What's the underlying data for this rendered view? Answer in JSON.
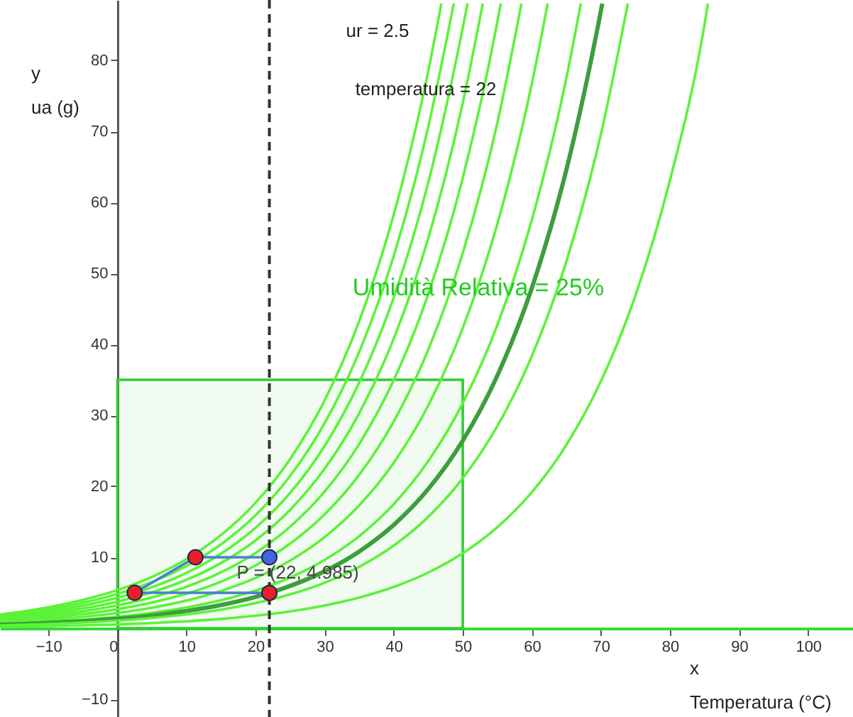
{
  "chart_data": {
    "type": "line",
    "xlabel": "x\nTemperatura (°C)",
    "ylabel": "y\nua (g)",
    "xlim": [
      -17,
      106.5
    ],
    "ylim": [
      -12.5,
      88.5
    ],
    "xticks": [
      -10,
      0,
      10,
      20,
      30,
      40,
      50,
      60,
      70,
      80,
      90,
      100
    ],
    "yticks": [
      -10,
      10,
      20,
      30,
      40,
      50,
      60,
      70,
      80
    ],
    "grid": false,
    "ref_lines": [
      {
        "axis": "x",
        "value": 22,
        "line_style": "dashed",
        "color": "#333333"
      }
    ],
    "annotations": [
      "ur = 2.5",
      "temperatura = 22",
      "Umidità Relativa = 25%",
      {
        "text": "P = (22, 4.985)",
        "x": 22,
        "y": 4.985
      }
    ],
    "series": [
      {
        "type": "area",
        "x": [
          0,
          50
        ],
        "values": [
          35,
          35
        ],
        "color": "#33cc33"
      },
      {
        "color": "#5cf23a",
        "x": [
          -17,
          -15,
          -10,
          -5,
          0,
          5,
          10,
          15,
          20,
          25,
          30,
          35,
          40,
          45,
          46.9
        ],
        "values": [
          1.95,
          2.2,
          2.96,
          3.99,
          5.37,
          7.24,
          9.75,
          13.13,
          17.69,
          23.83,
          32.1,
          43.24,
          58.24,
          78.45,
          88
        ]
      },
      {
        "color": "#5cf23a",
        "x": [
          -17,
          -15,
          -10,
          -5,
          0,
          5,
          10,
          15,
          20,
          25,
          30,
          35,
          40,
          45,
          48.7
        ],
        "values": [
          1.76,
          1.98,
          2.67,
          3.59,
          4.84,
          6.52,
          8.78,
          11.82,
          15.92,
          21.45,
          28.89,
          38.92,
          52.42,
          70.61,
          88
        ]
      },
      {
        "color": "#5cf23a",
        "x": [
          -17,
          -15,
          -10,
          -5,
          0,
          5,
          10,
          15,
          20,
          25,
          30,
          35,
          40,
          45,
          50,
          50.7
        ],
        "values": [
          1.56,
          1.76,
          2.37,
          3.19,
          4.3,
          5.79,
          7.8,
          10.5,
          14.15,
          19.06,
          25.68,
          34.59,
          46.59,
          62.76,
          84.56,
          88
        ]
      },
      {
        "color": "#5cf23a",
        "x": [
          -17,
          -15,
          -10,
          -5,
          0,
          5,
          10,
          15,
          20,
          25,
          30,
          35,
          40,
          45,
          50,
          52.9
        ],
        "values": [
          1.37,
          1.54,
          2.07,
          2.79,
          3.76,
          5.07,
          6.83,
          9.19,
          12.38,
          16.68,
          22.47,
          30.27,
          40.77,
          54.92,
          73.99,
          88
        ]
      },
      {
        "color": "#5cf23a",
        "x": [
          -17,
          -15,
          -10,
          -5,
          0,
          5,
          10,
          15,
          20,
          25,
          30,
          35,
          40,
          45,
          50,
          55,
          55.5
        ],
        "values": [
          1.17,
          1.32,
          1.78,
          2.39,
          3.22,
          4.34,
          5.85,
          7.88,
          10.61,
          14.3,
          19.26,
          25.94,
          34.94,
          47.07,
          63.42,
          85.38,
          88
        ]
      },
      {
        "color": "#5cf23a",
        "x": [
          -17,
          -15,
          -10,
          -5,
          0,
          5,
          10,
          15,
          20,
          25,
          30,
          35,
          40,
          45,
          50,
          55,
          58.5
        ],
        "values": [
          0.98,
          1.1,
          1.48,
          2.0,
          2.69,
          3.62,
          4.88,
          6.57,
          8.85,
          11.92,
          16.05,
          21.62,
          29.12,
          39.23,
          52.85,
          71.15,
          88
        ]
      },
      {
        "color": "#5cf23a",
        "x": [
          -17,
          -15,
          -10,
          -5,
          0,
          5,
          10,
          15,
          20,
          25,
          30,
          35,
          40,
          45,
          50,
          55,
          60,
          62.3
        ],
        "values": [
          0.78,
          0.88,
          1.18,
          1.6,
          2.15,
          2.9,
          3.9,
          5.25,
          7.08,
          9.53,
          12.84,
          17.3,
          23.3,
          31.38,
          42.28,
          56.92,
          76.68,
          88
        ]
      },
      {
        "color": "#5cf23a",
        "x": [
          -17,
          -15,
          -10,
          -5,
          0,
          5,
          10,
          15,
          20,
          25,
          30,
          35,
          40,
          45,
          50,
          55,
          60,
          65,
          67.1
        ],
        "values": [
          0.59,
          0.66,
          0.89,
          1.2,
          1.61,
          2.17,
          2.93,
          3.94,
          5.31,
          7.15,
          9.63,
          12.97,
          17.47,
          23.54,
          31.71,
          42.69,
          57.51,
          77.49,
          88
        ]
      },
      {
        "color": "#3d9e3d",
        "x": [
          -17,
          -15,
          -10,
          -5,
          0,
          5,
          10,
          15,
          20,
          25,
          30,
          35,
          40,
          45,
          50,
          55,
          60,
          65,
          70,
          70.2
        ],
        "values": [
          0.49,
          0.55,
          0.74,
          1.0,
          1.34,
          1.81,
          2.44,
          3.28,
          4.42,
          5.96,
          8.03,
          10.81,
          14.56,
          19.61,
          26.43,
          35.58,
          47.93,
          64.58,
          86.98,
          88
        ]
      },
      {
        "color": "#5cf23a",
        "x": [
          -17,
          -15,
          -10,
          -5,
          0,
          5,
          10,
          15,
          20,
          25,
          30,
          35,
          40,
          45,
          50,
          55,
          60,
          65,
          70,
          73.9
        ],
        "values": [
          0.39,
          0.44,
          0.59,
          0.8,
          1.07,
          1.45,
          1.95,
          2.63,
          3.54,
          4.77,
          6.42,
          8.65,
          11.65,
          15.69,
          21.14,
          28.46,
          38.34,
          51.66,
          69.58,
          88
        ]
      },
      {
        "color": "#5cf23a",
        "x": [
          -17,
          -15,
          -10,
          -5,
          0,
          5,
          10,
          15,
          20,
          25,
          30,
          35,
          40,
          45,
          50,
          55,
          60,
          65,
          70,
          75,
          80,
          85,
          85.5
        ],
        "values": [
          0.2,
          0.22,
          0.3,
          0.4,
          0.54,
          0.72,
          0.98,
          1.31,
          1.77,
          2.38,
          3.21,
          4.32,
          5.82,
          7.85,
          10.57,
          14.23,
          19.17,
          25.83,
          34.79,
          46.86,
          63.12,
          85.03,
          88
        ]
      },
      {
        "type": "line",
        "color": "#4a7fd4",
        "x": [
          22,
          11.3,
          2.5,
          22
        ],
        "values": [
          10,
          10,
          5,
          4.985
        ]
      },
      {
        "type": "scatter",
        "color": "#e8202a",
        "x": [
          2.5,
          11.3,
          22
        ],
        "values": [
          5,
          10,
          4.985
        ]
      },
      {
        "type": "scatter",
        "color": "#4466dd",
        "x": [
          22
        ],
        "values": [
          10
        ]
      }
    ]
  }
}
